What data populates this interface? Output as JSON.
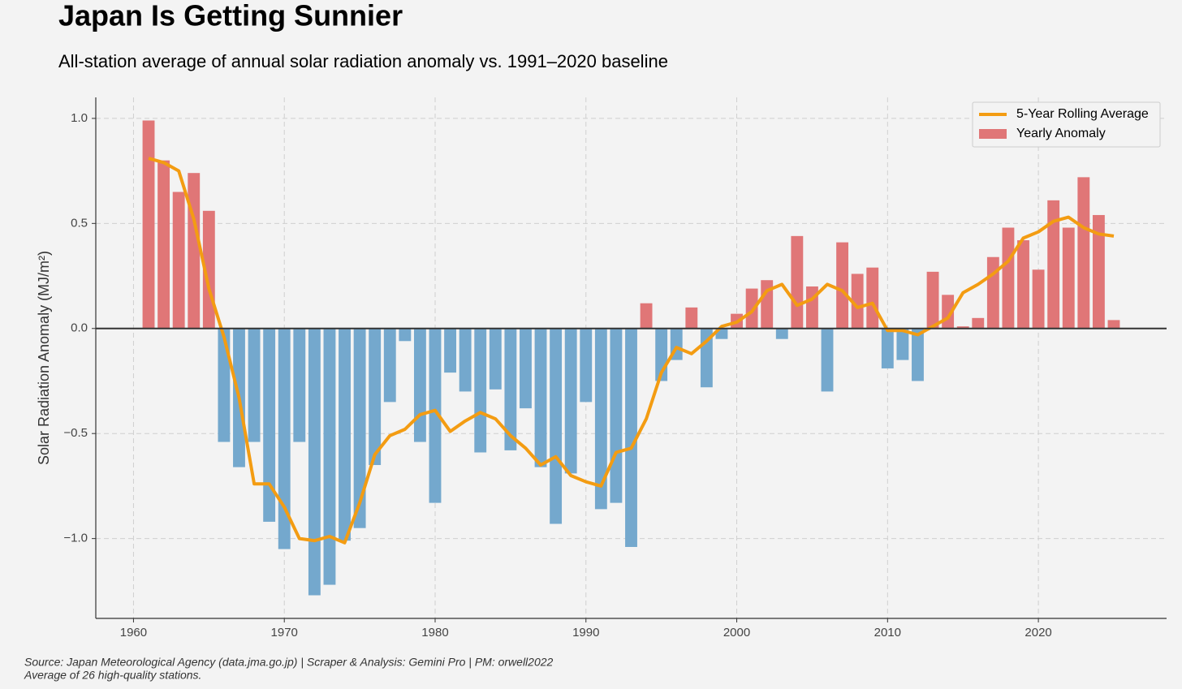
{
  "chart_data": {
    "type": "bar_line",
    "title": "Japan Is Getting Sunnier",
    "subtitle": "All-station average of annual solar radiation anomaly vs. 1991–2020 baseline",
    "y_label": "Solar Radiation Anomaly (MJ/m²)",
    "footnote": [
      "Source: Japan Meteorological Agency (data.jma.go.jp) | Scraper & Analysis: Gemini Pro | PM: orwell2022",
      "Average of 26 high-quality stations."
    ],
    "x": [
      1961,
      1962,
      1963,
      1964,
      1965,
      1966,
      1967,
      1968,
      1969,
      1970,
      1971,
      1972,
      1973,
      1974,
      1975,
      1976,
      1977,
      1978,
      1979,
      1980,
      1981,
      1982,
      1983,
      1984,
      1985,
      1986,
      1987,
      1988,
      1989,
      1990,
      1991,
      1992,
      1993,
      1994,
      1995,
      1996,
      1997,
      1998,
      1999,
      2000,
      2001,
      2002,
      2003,
      2004,
      2005,
      2006,
      2007,
      2008,
      2009,
      2010,
      2011,
      2012,
      2013,
      2014,
      2015,
      2016,
      2017,
      2018,
      2019,
      2020,
      2021,
      2022,
      2023,
      2024,
      2025
    ],
    "series": [
      {
        "name": "Yearly Anomaly",
        "type": "bar",
        "color": "#e07677",
        "negative_color": "#74a8cd",
        "values": [
          0.99,
          0.8,
          0.65,
          0.74,
          0.56,
          -0.54,
          -0.66,
          -0.54,
          -0.92,
          -1.05,
          -0.54,
          -1.27,
          -1.22,
          -1.01,
          -0.95,
          -0.65,
          -0.35,
          -0.06,
          -0.54,
          -0.83,
          -0.21,
          -0.3,
          -0.59,
          -0.29,
          -0.58,
          -0.38,
          -0.66,
          -0.93,
          -0.69,
          -0.35,
          -0.86,
          -0.83,
          -1.04,
          0.12,
          -0.25,
          -0.15,
          0.1,
          -0.28,
          -0.05,
          0.07,
          0.19,
          0.23,
          -0.05,
          0.44,
          0.2,
          -0.3,
          0.41,
          0.26,
          0.29,
          -0.19,
          -0.15,
          -0.25,
          0.27,
          0.16,
          0.01,
          0.05,
          0.34,
          0.48,
          0.42,
          0.28,
          0.61,
          0.48,
          0.72,
          0.54,
          0.04
        ]
      },
      {
        "name": "5-Year Rolling Average",
        "type": "line",
        "color": "#f39c12",
        "values": [
          0.81,
          0.79,
          0.75,
          0.52,
          0.19,
          -0.04,
          -0.33,
          -0.74,
          -0.74,
          -0.85,
          -1.0,
          -1.01,
          -0.99,
          -1.02,
          -0.83,
          -0.6,
          -0.51,
          -0.48,
          -0.41,
          -0.39,
          -0.49,
          -0.44,
          -0.4,
          -0.43,
          -0.51,
          -0.57,
          -0.65,
          -0.61,
          -0.7,
          -0.73,
          -0.75,
          -0.59,
          -0.57,
          -0.43,
          -0.21,
          -0.09,
          -0.12,
          -0.06,
          0.01,
          0.03,
          0.08,
          0.18,
          0.21,
          0.11,
          0.14,
          0.21,
          0.18,
          0.1,
          0.12,
          -0.01,
          -0.01,
          -0.03,
          0.01,
          0.05,
          0.17,
          0.21,
          0.26,
          0.32,
          0.43,
          0.46,
          0.51,
          0.53,
          0.48,
          0.45,
          0.44
        ]
      }
    ],
    "legend_order": [
      1,
      0
    ],
    "legend": "upper right",
    "xlim": [
      1957.5,
      2028.5
    ],
    "xticks": [
      1960,
      1970,
      1980,
      1990,
      2000,
      2010,
      2020
    ],
    "ylim": [
      -1.38,
      1.1
    ],
    "yticks": [
      {
        "value": -1.0,
        "label": "−1.0"
      },
      {
        "value": -0.5,
        "label": "−0.5"
      },
      {
        "value": 0,
        "label": "0.0"
      },
      {
        "value": 0.5,
        "label": "0.5"
      },
      {
        "value": 1.0,
        "label": "1.0"
      }
    ],
    "grid": true
  }
}
